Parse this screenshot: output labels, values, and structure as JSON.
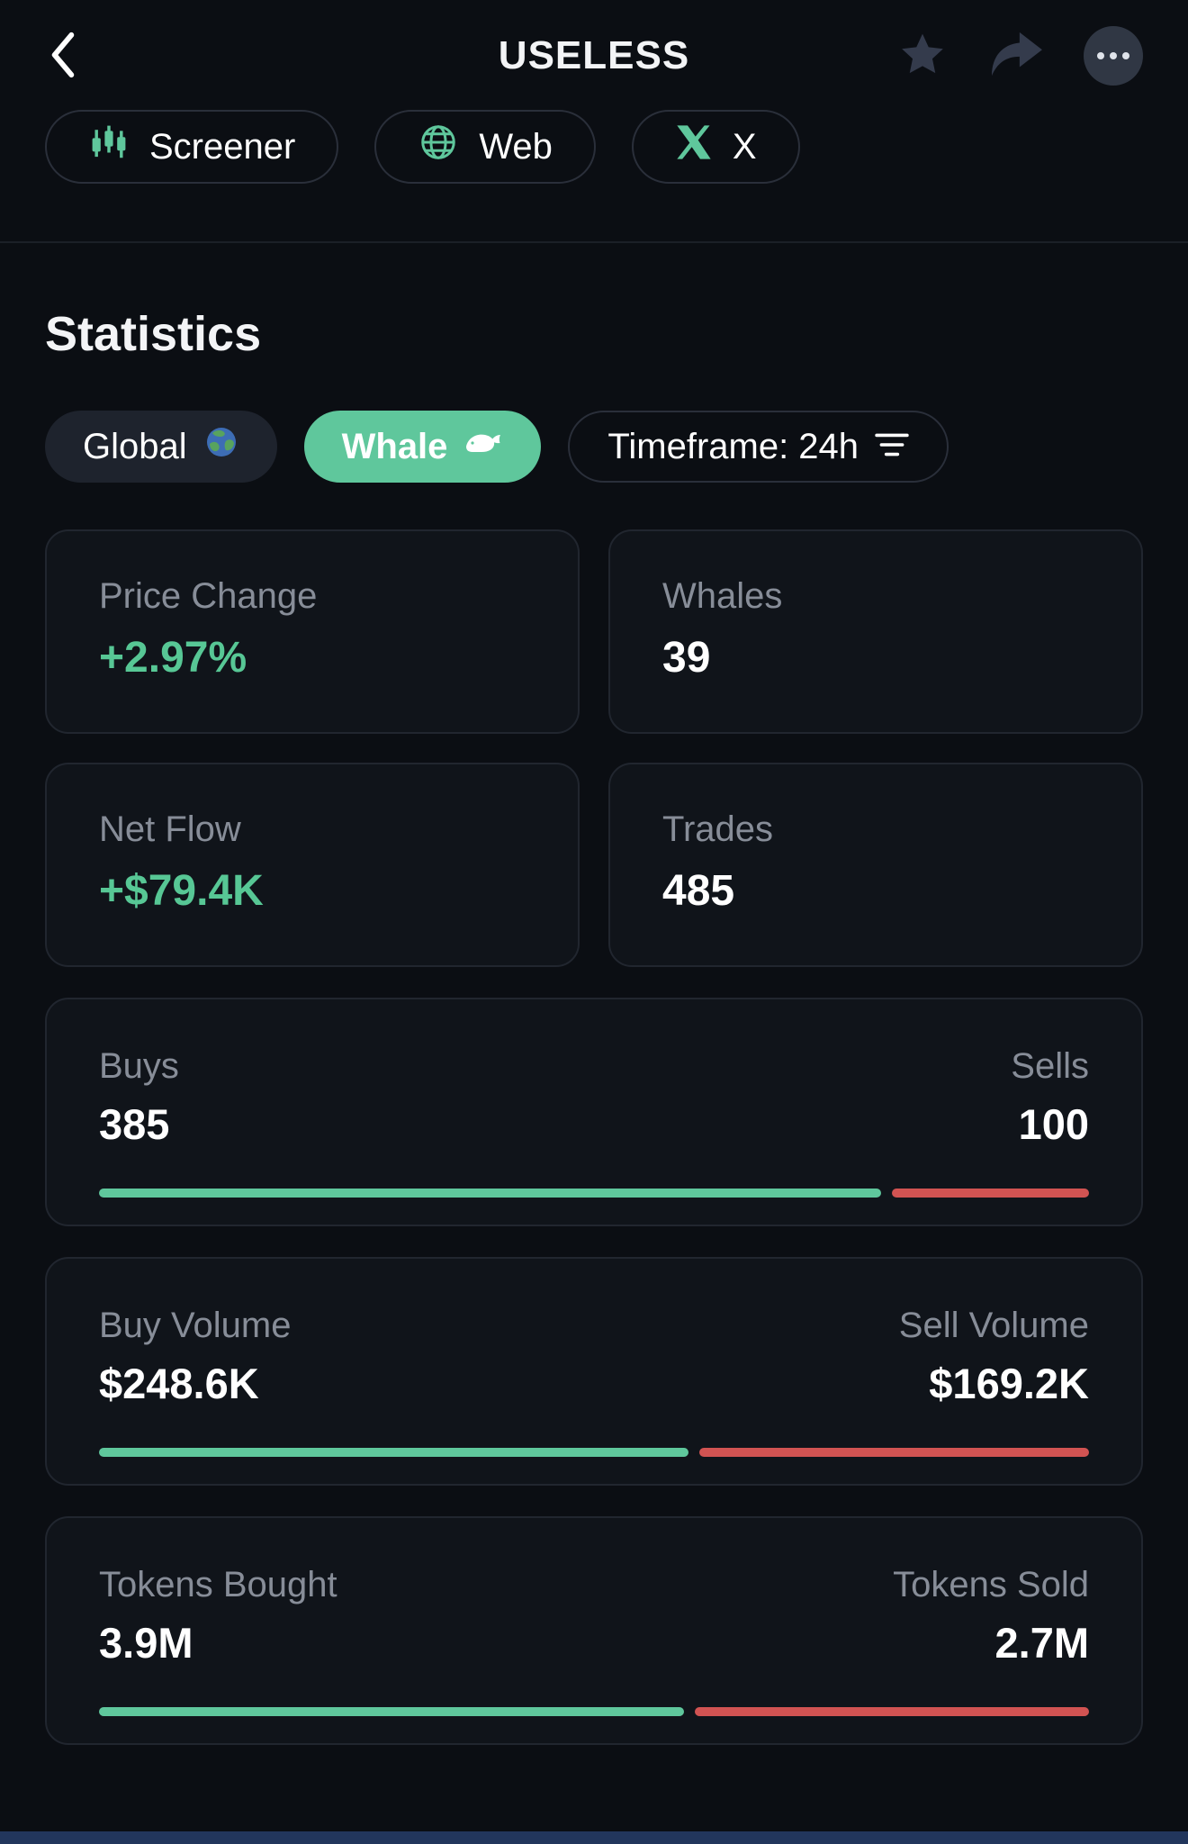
{
  "header": {
    "title": "USELESS"
  },
  "links": [
    {
      "label": "Screener",
      "icon": "candlestick-chart-icon"
    },
    {
      "label": "Web",
      "icon": "globe-icon"
    },
    {
      "label": "X",
      "icon": "x-logo-icon"
    }
  ],
  "statistics": {
    "title": "Statistics",
    "filters": {
      "global": "Global",
      "whale": "Whale",
      "timeframe": "Timeframe: 24h"
    },
    "cards": [
      {
        "label": "Price Change",
        "value": "+2.97%",
        "positive": true
      },
      {
        "label": "Whales",
        "value": "39",
        "positive": false
      },
      {
        "label": "Net Flow",
        "value": "+$79.4K",
        "positive": true
      },
      {
        "label": "Trades",
        "value": "485",
        "positive": false
      }
    ],
    "bars": [
      {
        "left_label": "Buys",
        "left_value": "385",
        "right_label": "Sells",
        "right_value": "100",
        "green_pct": 79
      },
      {
        "left_label": "Buy Volume",
        "left_value": "$248.6K",
        "right_label": "Sell Volume",
        "right_value": "$169.2K",
        "green_pct": 59.5
      },
      {
        "left_label": "Tokens Bought",
        "left_value": "3.9M",
        "right_label": "Tokens Sold",
        "right_value": "2.7M",
        "green_pct": 59.1
      }
    ]
  },
  "icons": {
    "back": "chevron-left",
    "favorite": "star",
    "share": "forward-arrow",
    "more": "ellipsis",
    "screener": "candlestick-chart",
    "web": "globe",
    "x": "x-logo",
    "global": "earth-emoji",
    "whale": "whale-emoji",
    "timeframe": "filter-lines"
  },
  "colors": {
    "green": "#5fc79c",
    "green-text": "#57c795",
    "red": "#d15352"
  }
}
